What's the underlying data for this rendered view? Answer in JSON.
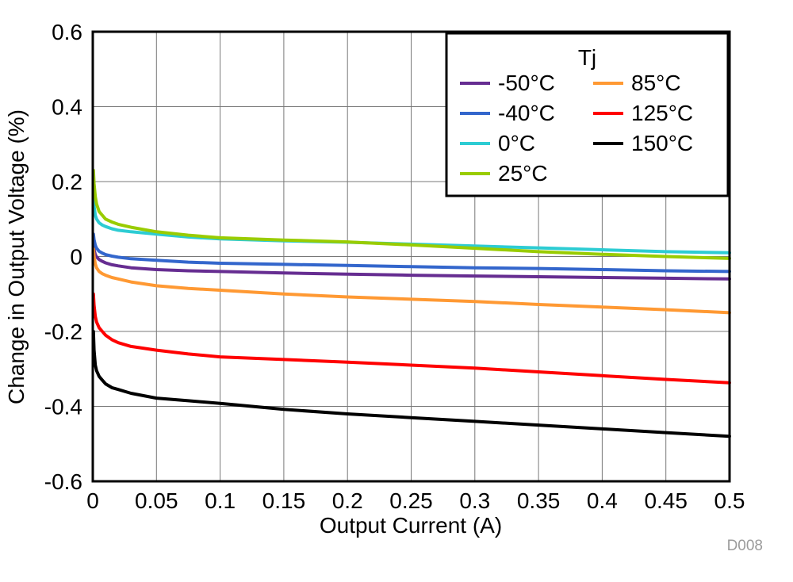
{
  "page": {
    "watermark": "D008"
  },
  "chart_data": {
    "type": "line",
    "title": "",
    "xlabel": "Output Current (A)",
    "ylabel": "Change in Output Voltage (%)",
    "xlim": [
      0,
      0.5
    ],
    "ylim": [
      -0.6,
      0.6
    ],
    "grid": true,
    "legend_position": "top-right",
    "xticks": [
      0,
      0.05,
      0.1,
      0.15,
      0.2,
      0.25,
      0.3,
      0.35,
      0.4,
      0.45,
      0.5
    ],
    "xtick_labels": [
      "0",
      "0.05",
      "0.1",
      "0.15",
      "0.2",
      "0.25",
      "0.3",
      "0.35",
      "0.4",
      "0.45",
      "0.5"
    ],
    "yticks": [
      -0.6,
      -0.4,
      -0.2,
      0,
      0.2,
      0.4,
      0.6
    ],
    "ytick_labels": [
      "-0.6",
      "-0.4",
      "-0.2",
      "0",
      "0.2",
      "0.4",
      "0.6"
    ],
    "legend": {
      "title": "Tj",
      "columns": [
        [
          "-50°C",
          "-40°C",
          "0°C",
          "25°C"
        ],
        [
          "85°C",
          "125°C",
          "150°C"
        ]
      ]
    },
    "series": [
      {
        "name": "-50°C",
        "color": "#662D91",
        "x": [
          0.0005,
          0.001,
          0.002,
          0.003,
          0.005,
          0.0075,
          0.01,
          0.015,
          0.02,
          0.03,
          0.05,
          0.075,
          0.1,
          0.15,
          0.2,
          0.25,
          0.3,
          0.35,
          0.4,
          0.45,
          0.5
        ],
        "y": [
          0.03,
          0.018,
          0.005,
          -0.001,
          -0.008,
          -0.013,
          -0.017,
          -0.022,
          -0.025,
          -0.03,
          -0.035,
          -0.038,
          -0.04,
          -0.044,
          -0.047,
          -0.05,
          -0.052,
          -0.054,
          -0.056,
          -0.058,
          -0.06
        ]
      },
      {
        "name": "-40°C",
        "color": "#3366CC",
        "x": [
          0.0005,
          0.001,
          0.002,
          0.003,
          0.005,
          0.0075,
          0.01,
          0.015,
          0.02,
          0.03,
          0.05,
          0.075,
          0.1,
          0.15,
          0.2,
          0.25,
          0.3,
          0.35,
          0.4,
          0.45,
          0.5
        ],
        "y": [
          0.06,
          0.045,
          0.03,
          0.022,
          0.014,
          0.009,
          0.005,
          0.001,
          -0.002,
          -0.006,
          -0.01,
          -0.015,
          -0.018,
          -0.021,
          -0.024,
          -0.027,
          -0.03,
          -0.032,
          -0.035,
          -0.038,
          -0.04
        ]
      },
      {
        "name": "0°C",
        "color": "#2DCCD3",
        "x": [
          0.0005,
          0.001,
          0.002,
          0.003,
          0.005,
          0.0075,
          0.01,
          0.015,
          0.02,
          0.03,
          0.05,
          0.075,
          0.1,
          0.15,
          0.2,
          0.25,
          0.3,
          0.35,
          0.4,
          0.45,
          0.5
        ],
        "y": [
          0.16,
          0.135,
          0.11,
          0.1,
          0.09,
          0.084,
          0.08,
          0.074,
          0.07,
          0.066,
          0.06,
          0.052,
          0.047,
          0.042,
          0.038,
          0.033,
          0.028,
          0.023,
          0.018,
          0.013,
          0.01
        ]
      },
      {
        "name": "25°C",
        "color": "#99CC00",
        "x": [
          0.0005,
          0.001,
          0.002,
          0.003,
          0.005,
          0.0075,
          0.01,
          0.015,
          0.02,
          0.03,
          0.05,
          0.075,
          0.1,
          0.15,
          0.2,
          0.25,
          0.3,
          0.35,
          0.4,
          0.45,
          0.5
        ],
        "y": [
          0.23,
          0.195,
          0.16,
          0.14,
          0.12,
          0.11,
          0.1,
          0.092,
          0.086,
          0.078,
          0.066,
          0.057,
          0.05,
          0.044,
          0.039,
          0.031,
          0.022,
          0.013,
          0.006,
          0.0,
          -0.005
        ]
      },
      {
        "name": "85°C",
        "color": "#FF9933",
        "x": [
          0.0005,
          0.001,
          0.002,
          0.003,
          0.005,
          0.0075,
          0.01,
          0.015,
          0.02,
          0.03,
          0.05,
          0.075,
          0.1,
          0.15,
          0.2,
          0.25,
          0.3,
          0.35,
          0.4,
          0.45,
          0.5
        ],
        "y": [
          0.02,
          0.0,
          -0.02,
          -0.03,
          -0.04,
          -0.046,
          -0.05,
          -0.056,
          -0.06,
          -0.068,
          -0.078,
          -0.085,
          -0.09,
          -0.1,
          -0.108,
          -0.114,
          -0.12,
          -0.128,
          -0.135,
          -0.142,
          -0.15
        ]
      },
      {
        "name": "125°C",
        "color": "#FF0000",
        "x": [
          0.0005,
          0.001,
          0.002,
          0.003,
          0.005,
          0.0075,
          0.01,
          0.015,
          0.02,
          0.03,
          0.05,
          0.075,
          0.1,
          0.15,
          0.2,
          0.25,
          0.3,
          0.35,
          0.4,
          0.45,
          0.5
        ],
        "y": [
          -0.1,
          -0.13,
          -0.16,
          -0.175,
          -0.19,
          -0.2,
          -0.21,
          -0.222,
          -0.23,
          -0.24,
          -0.25,
          -0.26,
          -0.268,
          -0.275,
          -0.282,
          -0.29,
          -0.298,
          -0.308,
          -0.318,
          -0.328,
          -0.337
        ]
      },
      {
        "name": "150°C",
        "color": "#000000",
        "x": [
          0.0005,
          0.001,
          0.002,
          0.003,
          0.005,
          0.0075,
          0.01,
          0.015,
          0.02,
          0.03,
          0.05,
          0.075,
          0.1,
          0.15,
          0.2,
          0.25,
          0.3,
          0.35,
          0.4,
          0.45,
          0.5
        ],
        "y": [
          -0.2,
          -0.25,
          -0.29,
          -0.305,
          -0.32,
          -0.33,
          -0.34,
          -0.35,
          -0.355,
          -0.365,
          -0.378,
          -0.385,
          -0.392,
          -0.408,
          -0.42,
          -0.43,
          -0.44,
          -0.45,
          -0.46,
          -0.47,
          -0.48
        ]
      }
    ]
  }
}
